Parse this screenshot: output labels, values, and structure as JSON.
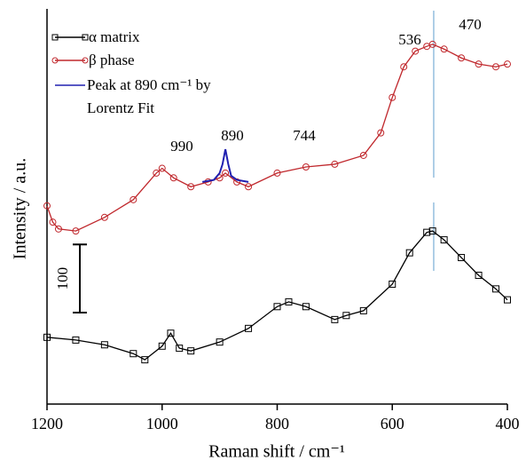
{
  "chart_data": {
    "type": "line",
    "xlabel": "Raman shift / cm⁻¹",
    "ylabel": "Intensity / a.u.",
    "xlim": [
      1200,
      400
    ],
    "xticks": [
      1200,
      1000,
      800,
      600,
      400
    ],
    "ylim": [
      0,
      580
    ],
    "series": [
      {
        "name": "α matrix",
        "color": "#000000",
        "marker": "square",
        "x": [
          1200,
          1150,
          1100,
          1050,
          1030,
          1000,
          985,
          970,
          950,
          900,
          850,
          800,
          780,
          750,
          700,
          680,
          650,
          600,
          570,
          540,
          530,
          510,
          480,
          450,
          420,
          400
        ],
        "values": [
          98,
          94,
          87,
          74,
          65,
          85,
          104,
          82,
          78,
          91,
          111,
          143,
          150,
          143,
          124,
          130,
          137,
          176,
          222,
          252,
          254,
          241,
          215,
          189,
          169,
          153
        ]
      },
      {
        "name": "β phase",
        "color": "#c0282d",
        "marker": "circle",
        "x": [
          1200,
          1190,
          1180,
          1150,
          1100,
          1050,
          1010,
          1000,
          980,
          950,
          920,
          900,
          890,
          870,
          850,
          800,
          750,
          700,
          650,
          620,
          600,
          580,
          560,
          540,
          530,
          510,
          480,
          450,
          420,
          400
        ],
        "values": [
          291,
          267,
          257,
          254,
          274,
          300,
          339,
          346,
          332,
          319,
          326,
          332,
          339,
          326,
          319,
          339,
          348,
          352,
          365,
          398,
          450,
          495,
          518,
          525,
          528,
          521,
          508,
          499,
          495,
          499
        ]
      },
      {
        "name": "Peak at 890 cm⁻¹ by Lorentz Fit",
        "color": "#2020b0",
        "marker": "none",
        "x": [
          930,
          910,
          900,
          895,
          890,
          885,
          880,
          870,
          850
        ],
        "values": [
          326,
          329,
          339,
          352,
          374,
          352,
          335,
          329,
          326
        ]
      }
    ],
    "annotations": [
      "990",
      "890",
      "744",
      "536",
      "470"
    ],
    "vline": 528,
    "vline_color": "#7aaed6",
    "scalebar": 100
  }
}
